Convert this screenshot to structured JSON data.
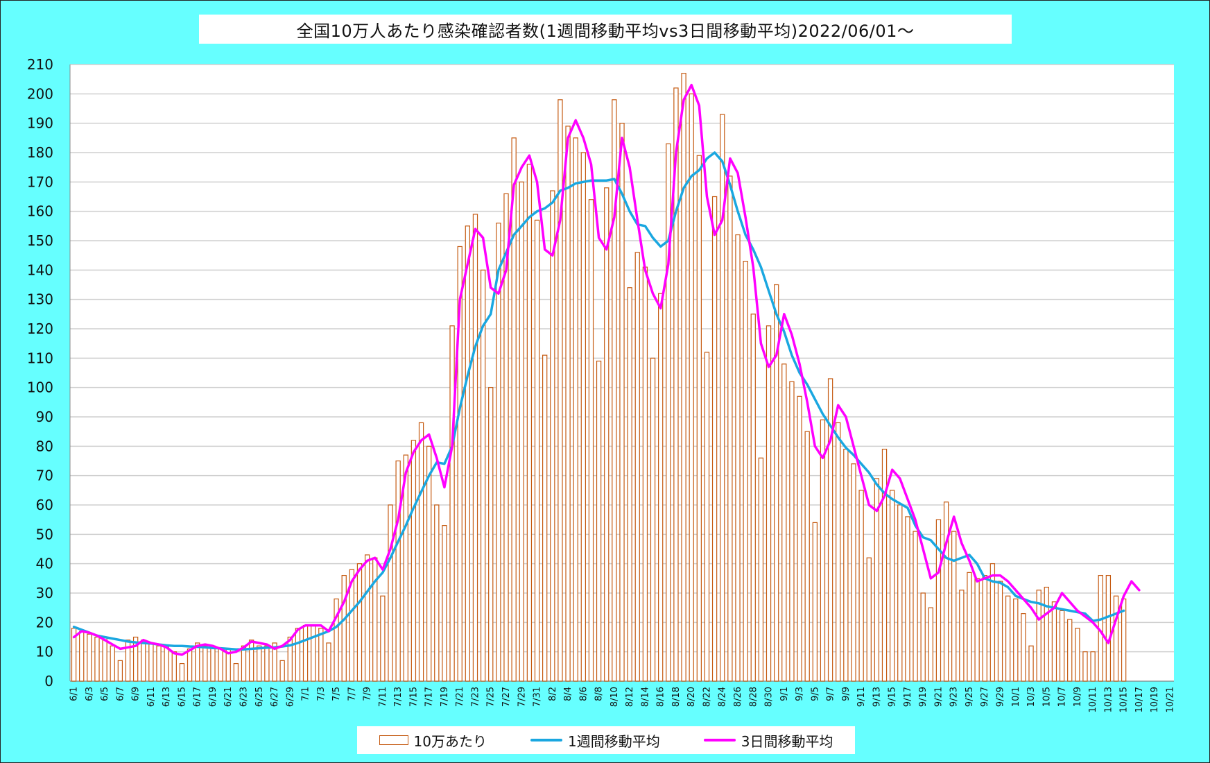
{
  "chart_data": {
    "type": "bar",
    "title": "全国10万人あたり感染確認者数(1週間移動平均vs3日間移動平均)2022/06/01〜",
    "ylim": [
      0,
      210
    ],
    "yticks": [
      0,
      10,
      20,
      30,
      40,
      50,
      60,
      70,
      80,
      90,
      100,
      110,
      120,
      130,
      140,
      150,
      160,
      170,
      180,
      190,
      200,
      210
    ],
    "grid": true,
    "legend_position": "bottom",
    "xtick_labels": [
      "6/1",
      "6/3",
      "6/5",
      "6/7",
      "6/9",
      "6/11",
      "6/13",
      "6/15",
      "6/17",
      "6/19",
      "6/21",
      "6/23",
      "6/25",
      "6/27",
      "6/29",
      "7/1",
      "7/3",
      "7/5",
      "7/7",
      "7/9",
      "7/11",
      "7/13",
      "7/15",
      "7/17",
      "7/19",
      "7/21",
      "7/23",
      "7/25",
      "7/27",
      "7/29",
      "7/31",
      "8/2",
      "8/4",
      "8/6",
      "8/8",
      "8/10",
      "8/12",
      "8/14",
      "8/16",
      "8/18",
      "8/20",
      "8/22",
      "8/24",
      "8/26",
      "8/28",
      "8/30",
      "9/1",
      "9/3",
      "9/5",
      "9/7",
      "9/9",
      "9/11",
      "9/13",
      "9/15",
      "9/17",
      "9/19",
      "9/21",
      "9/23",
      "9/25",
      "9/27",
      "9/29",
      "10/1",
      "10/3",
      "10/5",
      "10/7",
      "10/9",
      "10/11",
      "10/13",
      "10/15",
      "10/17",
      "10/19",
      "10/21"
    ],
    "n_categories": 143,
    "series": [
      {
        "name": "10万あたり",
        "type": "bar",
        "color": "#c55a11",
        "values": [
          18,
          17,
          16,
          15,
          15,
          12,
          7,
          14,
          15,
          14,
          13,
          12,
          12,
          10,
          6,
          11,
          13,
          12,
          12,
          11,
          11,
          6,
          12,
          14,
          12,
          12,
          13,
          7,
          15,
          18,
          19,
          19,
          18,
          13,
          28,
          36,
          38,
          40,
          43,
          42,
          29,
          60,
          75,
          77,
          82,
          88,
          80,
          60,
          53,
          121,
          148,
          155,
          159,
          140,
          100,
          156,
          166,
          185,
          170,
          176,
          157,
          111,
          167,
          198,
          189,
          185,
          180,
          164,
          109,
          168,
          198,
          190,
          134,
          146,
          141,
          110,
          132,
          183,
          202,
          207,
          200,
          179,
          112,
          165,
          193,
          172,
          152,
          143,
          125,
          76,
          121,
          135,
          108,
          102,
          97,
          85,
          54,
          89,
          103,
          88,
          79,
          74,
          65,
          42,
          69,
          79,
          65,
          60,
          56,
          51,
          30,
          25,
          55,
          61,
          51,
          31,
          37,
          35,
          36,
          40,
          34,
          29,
          28,
          23,
          12,
          31,
          32,
          27,
          24,
          21,
          18,
          10,
          10,
          36,
          36,
          29,
          28
        ]
      },
      {
        "name": "1週間移動平均",
        "type": "line",
        "color": "#1aa7e0",
        "values": [
          18.5,
          17.5,
          16.5,
          15.5,
          15,
          14.5,
          14,
          13.5,
          13.2,
          13,
          12.8,
          12.5,
          12.2,
          12,
          12,
          11.8,
          11.7,
          11.5,
          11.3,
          11.2,
          11,
          10.8,
          10.8,
          11,
          11.2,
          11.4,
          11.5,
          11.8,
          12.2,
          13,
          14,
          15,
          16,
          17,
          18.5,
          21,
          24,
          27,
          30.5,
          34,
          37,
          42,
          47.5,
          53,
          59,
          64.5,
          70,
          74.5,
          74,
          80,
          93,
          104,
          114,
          121,
          125,
          140,
          146,
          152,
          155,
          158,
          160,
          161,
          163,
          167,
          168,
          169.5,
          170,
          170.5,
          170.5,
          170.5,
          171,
          166,
          160,
          155.5,
          155,
          151,
          148,
          150,
          160,
          168,
          172,
          174,
          178,
          180,
          177,
          169,
          160,
          152,
          147,
          141,
          133,
          125,
          119,
          111,
          105,
          101,
          96,
          91,
          87,
          83,
          79.5,
          77,
          74,
          71,
          67,
          64,
          62,
          60.5,
          59,
          53,
          49,
          48,
          45,
          42,
          41,
          42,
          43,
          40,
          35,
          34,
          33.5,
          32,
          29,
          28,
          27,
          26.5,
          25.5,
          25,
          24.5,
          24,
          23.5,
          23,
          20.5,
          21,
          22,
          23,
          24
        ]
      },
      {
        "name": "3日間移動平均",
        "type": "line",
        "color": "#ff00ff",
        "values": [
          15,
          17,
          16.5,
          15.5,
          14,
          12.5,
          11,
          11.5,
          12,
          14,
          13,
          12.5,
          11.5,
          9.5,
          9,
          10.5,
          12,
          12.5,
          12,
          11,
          9.5,
          10,
          11.5,
          13.5,
          13,
          12.5,
          11,
          12,
          14,
          17.5,
          19,
          19,
          19,
          17,
          22,
          27,
          34,
          38,
          41,
          42,
          38,
          45,
          55,
          71,
          78,
          82,
          84,
          76,
          66,
          80,
          130,
          142,
          154,
          151,
          134,
          132,
          140,
          169,
          175,
          179,
          170,
          147,
          145,
          157,
          185,
          191,
          185,
          176,
          151,
          147,
          158,
          185,
          175,
          157,
          140,
          132,
          127,
          142,
          180,
          198,
          203,
          196,
          165,
          152,
          157,
          178,
          173,
          158,
          141,
          115,
          107,
          111,
          125,
          118,
          108,
          95,
          80,
          76,
          82,
          94,
          90,
          80,
          70,
          60,
          58,
          63,
          72,
          69,
          62,
          55,
          45,
          35,
          37,
          47,
          56,
          47,
          41,
          34,
          35,
          36,
          36,
          34,
          31,
          28,
          25,
          21,
          23,
          25,
          30,
          27,
          24,
          22,
          20,
          17,
          13,
          21,
          29,
          34,
          31
        ]
      }
    ]
  }
}
